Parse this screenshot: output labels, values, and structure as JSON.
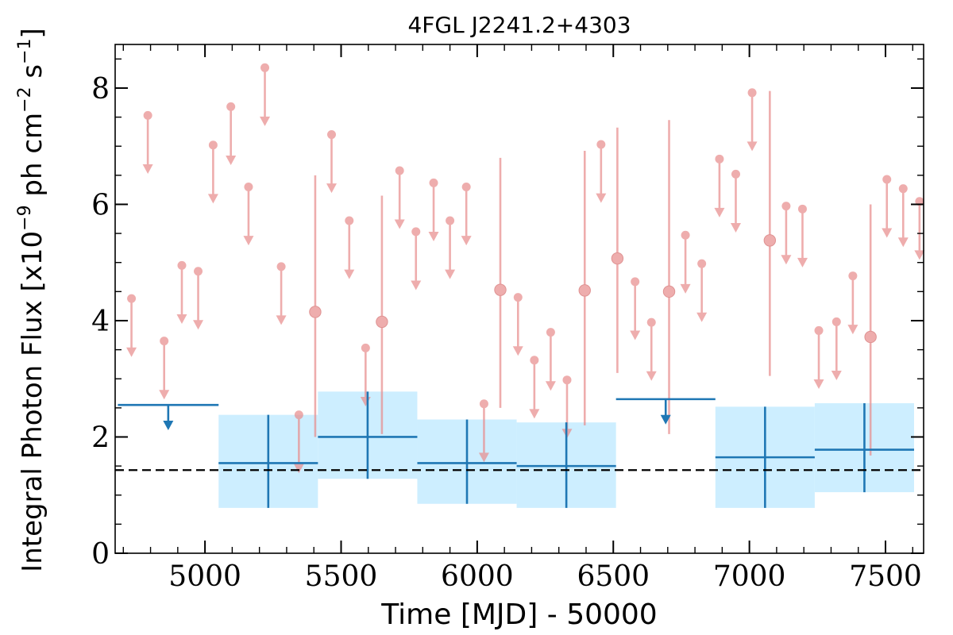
{
  "chart_data": {
    "type": "scatter",
    "title": "4FGL J2241.2+4303",
    "xlabel": "Time [MJD] - 50000",
    "ylabel": "Integral Photon Flux [x10",
    "ylabel_exp1": "−9",
    "ylabel_mid": " ph cm",
    "ylabel_exp2": "−2",
    "ylabel_mid2": " s",
    "ylabel_exp3": "−1",
    "ylabel_end": "]",
    "xlim": [
      4670,
      7640
    ],
    "ylim": [
      0,
      8.75
    ],
    "x_ticks": [
      5000,
      5500,
      6000,
      6500,
      7000,
      7500
    ],
    "x_tick_labels": [
      "5000",
      "5500",
      "6000",
      "6500",
      "7000",
      "7500"
    ],
    "y_ticks": [
      0,
      2,
      4,
      6,
      8
    ],
    "y_tick_labels": [
      "0",
      "2",
      "4",
      "6",
      "8"
    ],
    "average_flux": 1.43,
    "colors": {
      "short_bins": "#e88e8e",
      "long_bins": "#1f77b4",
      "long_band": "#cdeeff",
      "average_line": "#000000"
    },
    "long_bins": [
      {
        "x_lo": 4680,
        "x_hi": 5050,
        "upper_limit": true,
        "y": 2.55
      },
      {
        "x_lo": 5050,
        "x_hi": 5415,
        "upper_limit": false,
        "y": 1.55,
        "y_lo": 0.78,
        "y_hi": 2.38,
        "band_lo": 0.78,
        "band_hi": 2.38
      },
      {
        "x_lo": 5415,
        "x_hi": 5780,
        "upper_limit": false,
        "y": 2.0,
        "y_lo": 1.28,
        "y_hi": 2.78,
        "band_lo": 1.28,
        "band_hi": 2.78
      },
      {
        "x_lo": 5780,
        "x_hi": 6145,
        "upper_limit": false,
        "y": 1.55,
        "y_lo": 0.85,
        "y_hi": 2.3,
        "band_lo": 0.85,
        "band_hi": 2.3
      },
      {
        "x_lo": 6145,
        "x_hi": 6510,
        "upper_limit": false,
        "y": 1.5,
        "y_lo": 0.78,
        "y_hi": 2.25,
        "band_lo": 0.78,
        "band_hi": 2.25
      },
      {
        "x_lo": 6510,
        "x_hi": 6875,
        "upper_limit": true,
        "y": 2.65
      },
      {
        "x_lo": 6875,
        "x_hi": 7240,
        "upper_limit": false,
        "y": 1.65,
        "y_lo": 0.78,
        "y_hi": 2.52,
        "band_lo": 0.78,
        "band_hi": 2.52
      },
      {
        "x_lo": 7240,
        "x_hi": 7605,
        "upper_limit": false,
        "y": 1.78,
        "y_lo": 1.05,
        "y_hi": 2.58,
        "band_lo": 1.05,
        "band_hi": 2.58
      }
    ],
    "short_bins": [
      {
        "x": 4730,
        "y": 4.38,
        "upper_limit": true
      },
      {
        "x": 4790,
        "y": 7.53,
        "upper_limit": true
      },
      {
        "x": 4850,
        "y": 3.65,
        "upper_limit": true
      },
      {
        "x": 4915,
        "y": 4.95,
        "upper_limit": true
      },
      {
        "x": 4975,
        "y": 4.85,
        "upper_limit": true
      },
      {
        "x": 5030,
        "y": 7.02,
        "upper_limit": true
      },
      {
        "x": 5095,
        "y": 7.68,
        "upper_limit": true
      },
      {
        "x": 5160,
        "y": 6.3,
        "upper_limit": true
      },
      {
        "x": 5220,
        "y": 8.35,
        "upper_limit": true
      },
      {
        "x": 5280,
        "y": 4.93,
        "upper_limit": true
      },
      {
        "x": 5345,
        "y": 2.38,
        "upper_limit": true
      },
      {
        "x": 5405,
        "y": 4.15,
        "upper_limit": false,
        "y_lo": 2.0,
        "y_hi": 6.5
      },
      {
        "x": 5465,
        "y": 7.2,
        "upper_limit": true
      },
      {
        "x": 5530,
        "y": 5.72,
        "upper_limit": true
      },
      {
        "x": 5590,
        "y": 3.53,
        "upper_limit": true
      },
      {
        "x": 5650,
        "y": 3.98,
        "upper_limit": false,
        "y_lo": 2.05,
        "y_hi": 6.15
      },
      {
        "x": 5715,
        "y": 6.58,
        "upper_limit": true
      },
      {
        "x": 5775,
        "y": 5.53,
        "upper_limit": true
      },
      {
        "x": 5840,
        "y": 6.37,
        "upper_limit": true
      },
      {
        "x": 5900,
        "y": 5.72,
        "upper_limit": true
      },
      {
        "x": 5960,
        "y": 6.3,
        "upper_limit": true
      },
      {
        "x": 6025,
        "y": 2.57,
        "upper_limit": true
      },
      {
        "x": 6085,
        "y": 4.53,
        "upper_limit": false,
        "y_lo": 2.5,
        "y_hi": 6.8
      },
      {
        "x": 6150,
        "y": 4.4,
        "upper_limit": true
      },
      {
        "x": 6210,
        "y": 3.32,
        "upper_limit": true
      },
      {
        "x": 6270,
        "y": 3.8,
        "upper_limit": true
      },
      {
        "x": 6330,
        "y": 2.98,
        "upper_limit": true
      },
      {
        "x": 6395,
        "y": 4.52,
        "upper_limit": false,
        "y_lo": 2.2,
        "y_hi": 6.92
      },
      {
        "x": 6455,
        "y": 7.03,
        "upper_limit": true
      },
      {
        "x": 6515,
        "y": 5.07,
        "upper_limit": false,
        "y_lo": 3.1,
        "y_hi": 7.32
      },
      {
        "x": 6580,
        "y": 4.67,
        "upper_limit": true
      },
      {
        "x": 6640,
        "y": 3.97,
        "upper_limit": true
      },
      {
        "x": 6705,
        "y": 4.5,
        "upper_limit": false,
        "y_lo": 2.05,
        "y_hi": 7.45
      },
      {
        "x": 6765,
        "y": 5.47,
        "upper_limit": true
      },
      {
        "x": 6825,
        "y": 4.98,
        "upper_limit": true
      },
      {
        "x": 6890,
        "y": 6.78,
        "upper_limit": true
      },
      {
        "x": 6950,
        "y": 6.52,
        "upper_limit": true
      },
      {
        "x": 7010,
        "y": 7.92,
        "upper_limit": true
      },
      {
        "x": 7075,
        "y": 5.38,
        "upper_limit": false,
        "y_lo": 3.05,
        "y_hi": 7.95
      },
      {
        "x": 7135,
        "y": 5.97,
        "upper_limit": true
      },
      {
        "x": 7195,
        "y": 5.92,
        "upper_limit": true
      },
      {
        "x": 7255,
        "y": 3.83,
        "upper_limit": true
      },
      {
        "x": 7320,
        "y": 3.98,
        "upper_limit": true
      },
      {
        "x": 7380,
        "y": 4.77,
        "upper_limit": true
      },
      {
        "x": 7445,
        "y": 3.72,
        "upper_limit": false,
        "y_lo": 1.68,
        "y_hi": 6.0
      },
      {
        "x": 7505,
        "y": 6.43,
        "upper_limit": true
      },
      {
        "x": 7565,
        "y": 6.27,
        "upper_limit": true
      },
      {
        "x": 7625,
        "y": 6.05,
        "upper_limit": true
      }
    ]
  }
}
